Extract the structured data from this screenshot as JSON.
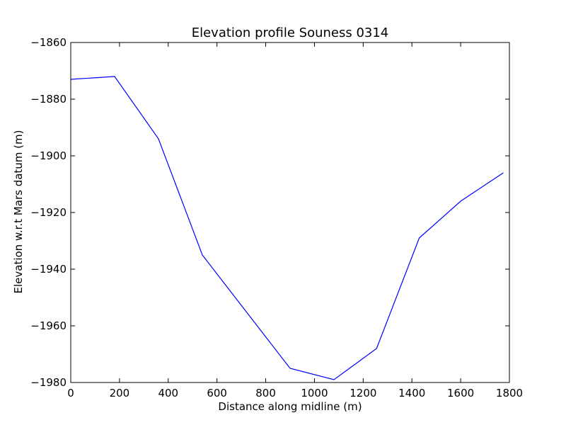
{
  "chart_data": {
    "type": "line",
    "title": "Elevation profile Souness 0314",
    "xlabel": "Distance along midline (m)",
    "ylabel": "Elevation w.r.t Mars datum (m)",
    "xlim": [
      0,
      1800
    ],
    "ylim": [
      -1980,
      -1860
    ],
    "xticks": [
      0,
      200,
      400,
      600,
      800,
      1000,
      1200,
      1400,
      1600,
      1800
    ],
    "yticks": [
      -1980,
      -1960,
      -1940,
      -1920,
      -1900,
      -1880,
      -1860
    ],
    "xtick_labels": [
      "0",
      "200",
      "400",
      "600",
      "800",
      "1000",
      "1200",
      "1400",
      "1600",
      "1800"
    ],
    "ytick_labels": [
      "−1980",
      "−1960",
      "−1940",
      "−1920",
      "−1900",
      "−1880",
      "−1860"
    ],
    "grid": false,
    "series": [
      {
        "color": "#0000ff",
        "x": [
          0,
          180,
          360,
          540,
          900,
          1080,
          1255,
          1430,
          1600,
          1775
        ],
        "y": [
          -1873,
          -1872,
          -1894,
          -1935,
          -1975,
          -1979,
          -1968,
          -1929,
          -1916,
          -1906
        ]
      }
    ]
  }
}
